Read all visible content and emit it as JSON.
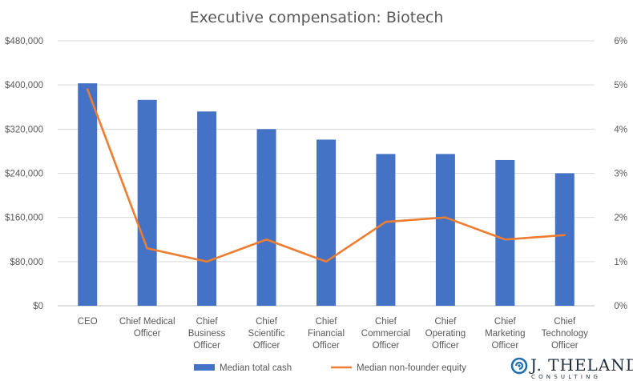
{
  "chart_data": {
    "type": "bar",
    "title": "Executive compensation: Biotech",
    "categories": [
      [
        "CEO"
      ],
      [
        "Chief Medical",
        "Officer"
      ],
      [
        "Chief",
        "Business",
        "Officer"
      ],
      [
        "Chief",
        "Scientific",
        "Officer"
      ],
      [
        "Chief",
        "Financial",
        "Officer"
      ],
      [
        "Chief",
        "Commercial",
        "Officer"
      ],
      [
        "Chief",
        "Operating",
        "Officer"
      ],
      [
        "Chief",
        "Marketing",
        "Officer"
      ],
      [
        "Chief",
        "Technology",
        "Officer"
      ]
    ],
    "series": [
      {
        "name": "Median total cash",
        "type": "bar",
        "axis": "left",
        "color": "#4472c4",
        "values": [
          403000,
          373000,
          352000,
          320000,
          301000,
          275000,
          275000,
          264000,
          240000
        ]
      },
      {
        "name": "Median non-founder equity",
        "type": "line",
        "axis": "right",
        "color": "#ed7d31",
        "values": [
          4.9,
          1.3,
          1.0,
          1.5,
          1.0,
          1.9,
          2.0,
          1.5,
          1.6
        ]
      }
    ],
    "y_left": {
      "min": 0,
      "max": 480000,
      "ticks": [
        "$0",
        "$80,000",
        "$160,000",
        "$240,000",
        "$320,000",
        "$400,000",
        "$480,000"
      ]
    },
    "y_right": {
      "min": 0,
      "max": 6,
      "ticks": [
        "0%",
        "1%",
        "2%",
        "3%",
        "4%",
        "5%",
        "6%"
      ]
    },
    "grid": true,
    "legend_position": "bottom"
  },
  "brand": {
    "name": "J. THELANDER",
    "tagline": "CONSULTING",
    "icon": "spiral-logo-icon"
  }
}
